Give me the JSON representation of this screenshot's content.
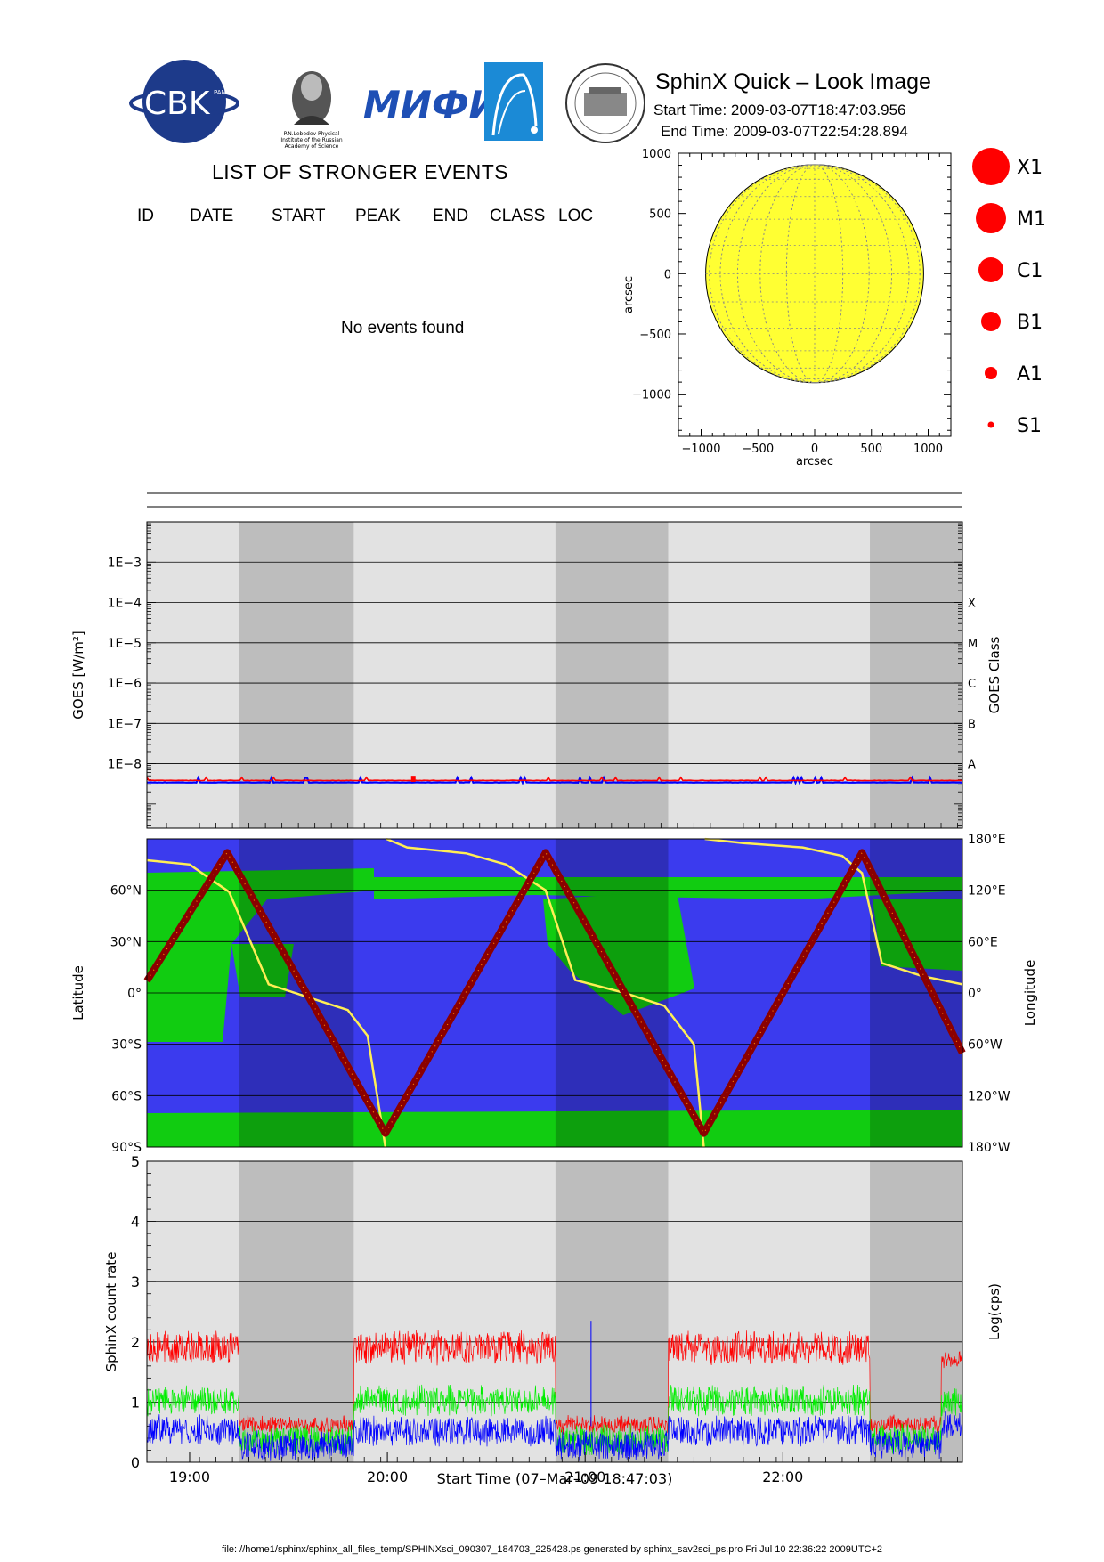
{
  "header": {
    "title": "SphinX Quick – Look Image",
    "start_time": "Start Time: 2009-03-07T18:47:03.956",
    "end_time": "End Time: 2009-03-07T22:54:28.894",
    "logos": {
      "cbk": "CBK",
      "cbk_small": "PAN",
      "lebedev": "P.N.Lebedev Physical Institute of the Russian Academy of Science",
      "miam": "MИФИ"
    }
  },
  "events": {
    "title": "LIST OF STRONGER EVENTS",
    "columns": [
      "ID",
      "DATE",
      "START",
      "PEAK",
      "END",
      "CLASS",
      "LOC"
    ],
    "empty_message": "No events found"
  },
  "legend": {
    "items": [
      "X1",
      "M1",
      "C1",
      "B1",
      "A1",
      "S1"
    ],
    "marker_color": "#ff0000"
  },
  "footer": {
    "text": "file: //home1/sphinx/sphinx_all_files_temp/SPHINXsci_090307_184703_225428.ps generated by sphinx_sav2sci_ps.pro Fri Jul 10 22:36:22 2009UTC+2"
  },
  "colors": {
    "day_band": "#e2e2e2",
    "night_band": "#bdbdbd",
    "ocean": "#3b3bee",
    "land": "#11cc11",
    "sun_disk": "#ffff33",
    "goes_short": "#ff0000",
    "goes_long": "#0000ff",
    "sphinx_red": "#ff0000",
    "sphinx_green": "#00ee00",
    "sphinx_blue": "#0000ff",
    "track": "#8b0000",
    "longitude_line": "#ffee55"
  },
  "chart_data": [
    {
      "type": "scatter",
      "name": "sun-map",
      "xlabel": "arcsec",
      "ylabel": "arcsec",
      "xlim": [
        -1200,
        1200
      ],
      "ylim": [
        -1350,
        1000
      ],
      "xticks": [
        -1000,
        -500,
        0,
        500,
        1000
      ],
      "yticks": [
        -1000,
        -500,
        0,
        500,
        1000
      ],
      "xtick_labels": [
        "−1000",
        "−500",
        "0",
        "500",
        "1000"
      ],
      "ytick_labels": [
        "−1000",
        "−500",
        "0",
        "500",
        "1000"
      ],
      "disk_radius": 960,
      "grid": true
    },
    {
      "type": "line",
      "name": "goes",
      "ylabel": "GOES [W/m²]",
      "right_label": "GOES Class",
      "y_log": true,
      "ylim_exp": [
        -9.6,
        -2.0
      ],
      "ytick_labels": [
        "1E−8",
        "1E−7",
        "1E−6",
        "1E−5",
        "1E−4",
        "1E−3"
      ],
      "ytick_exps": [
        -8,
        -7,
        -6,
        -5,
        -4,
        -3
      ],
      "class_labels": [
        "A",
        "B",
        "C",
        "M",
        "X"
      ],
      "class_exps": [
        -8,
        -7,
        -6,
        -5,
        -4
      ],
      "xlim_hours": [
        18.784,
        22.908
      ],
      "night_intervals": [
        [
          19.25,
          19.83
        ],
        [
          20.85,
          21.42
        ],
        [
          22.44,
          22.908
        ]
      ],
      "series": [
        {
          "name": "",
          "level_exp": -8.42
        },
        {
          "name": "",
          "level_exp": -8.47
        }
      ]
    },
    {
      "type": "line",
      "name": "orbit",
      "ylabel": "Latitude",
      "right_label": "Longitude",
      "ylim": [
        -90,
        90
      ],
      "lat_ticks": [
        -90,
        -60,
        -30,
        0,
        30,
        60
      ],
      "lat_labels": [
        "90°S",
        "60°S",
        "30°S",
        "0°",
        "30°N",
        "60°N"
      ],
      "lon_ticks": [
        -180,
        -120,
        -60,
        0,
        60,
        120,
        180
      ],
      "lon_labels": [
        "180°W",
        "120°W",
        "60°W",
        "0°",
        "60°E",
        "120°E",
        "180°E"
      ],
      "xlim_hours": [
        18.784,
        22.908
      ],
      "night_intervals": [
        [
          19.25,
          19.83
        ],
        [
          20.85,
          21.42
        ],
        [
          22.44,
          22.908
        ]
      ],
      "latitude_track": {
        "hours": [
          18.784,
          19.19,
          19.99,
          20.8,
          21.6,
          22.4,
          22.908
        ],
        "lat": [
          7,
          82,
          -82,
          82,
          -82,
          82,
          -35
        ]
      },
      "longitude_track": {
        "hours": [
          18.784,
          19.0,
          19.2,
          19.4,
          19.6,
          19.8,
          19.9,
          19.99,
          19.995,
          20.1,
          20.4,
          20.6,
          20.8,
          20.95,
          21.2,
          21.4,
          21.55,
          21.6,
          21.605,
          21.8,
          22.1,
          22.3,
          22.4,
          22.5,
          22.7,
          22.908
        ],
        "lon": [
          155,
          150,
          118,
          10,
          -5,
          -20,
          -50,
          -180,
          180,
          170,
          163,
          150,
          120,
          15,
          0,
          -15,
          -60,
          -180,
          180,
          175,
          170,
          160,
          140,
          35,
          20,
          10
        ]
      }
    },
    {
      "type": "line",
      "name": "sphinx",
      "ylabel": "SphinX count rate",
      "right_label": "Log(cps)",
      "ylim": [
        0,
        5
      ],
      "yticks": [
        0,
        1,
        2,
        3,
        4,
        5
      ],
      "xlim_hours": [
        18.784,
        22.908
      ],
      "xticks_hours": [
        19,
        20,
        21,
        22
      ],
      "xtick_labels": [
        "19:00",
        "20:00",
        "21:00",
        "22:00"
      ],
      "xlabel": "Start Time (07–Mar–09 18:47:03)",
      "night_intervals": [
        [
          19.25,
          19.83
        ],
        [
          20.85,
          21.42
        ],
        [
          22.44,
          22.908
        ]
      ],
      "series": [
        {
          "name": "",
          "day_level": 2.1,
          "night_level": 0.7
        },
        {
          "name": "",
          "day_level": 1.2,
          "night_level": 0.55
        },
        {
          "name": "",
          "day_level": 0.7,
          "night_level": 0.45
        }
      ],
      "spike": {
        "hour": 21.03,
        "value": 2.35
      }
    }
  ]
}
